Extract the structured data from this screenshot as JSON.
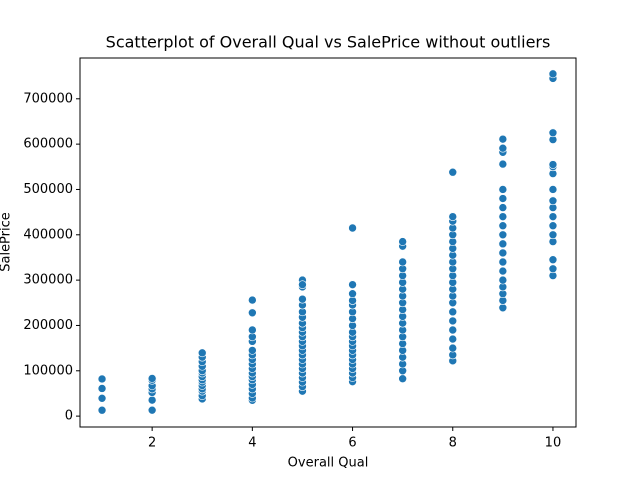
{
  "chart_data": {
    "type": "scatter",
    "title": "Scatterplot of Overall Qual vs SalePrice without outliers",
    "xlabel": "Overall Qual",
    "ylabel": "SalePrice",
    "color": "#1f77b4",
    "xlim": [
      0.56,
      10.46
    ],
    "ylim": [
      -24000,
      790000
    ],
    "xticks": [
      2,
      4,
      6,
      8,
      10
    ],
    "yticks": [
      0,
      100000,
      200000,
      300000,
      400000,
      500000,
      600000,
      700000
    ],
    "x": [
      1,
      1,
      1,
      1,
      2,
      2,
      2,
      2,
      2,
      2,
      2,
      3,
      3,
      3,
      3,
      3,
      3,
      3,
      3,
      3,
      3,
      3,
      3,
      3,
      3,
      4,
      4,
      4,
      4,
      4,
      4,
      4,
      4,
      4,
      4,
      4,
      4,
      4,
      4,
      4,
      4,
      4,
      4,
      5,
      5,
      5,
      5,
      5,
      5,
      5,
      5,
      5,
      5,
      5,
      5,
      5,
      5,
      5,
      5,
      5,
      5,
      5,
      5,
      5,
      5,
      5,
      6,
      6,
      6,
      6,
      6,
      6,
      6,
      6,
      6,
      6,
      6,
      6,
      6,
      6,
      6,
      6,
      6,
      6,
      6,
      6,
      7,
      7,
      7,
      7,
      7,
      7,
      7,
      7,
      7,
      7,
      7,
      7,
      7,
      7,
      7,
      7,
      7,
      7,
      7,
      7,
      8,
      8,
      8,
      8,
      8,
      8,
      8,
      8,
      8,
      8,
      8,
      8,
      8,
      8,
      8,
      8,
      8,
      8,
      8,
      8,
      8,
      8,
      9,
      9,
      9,
      9,
      9,
      9,
      9,
      9,
      9,
      9,
      9,
      9,
      9,
      9,
      9,
      9,
      9,
      9,
      9,
      10,
      10,
      10,
      10,
      10,
      10,
      10,
      10,
      10,
      10,
      10,
      10,
      10,
      10,
      10,
      10,
      10
    ],
    "values": [
      13000,
      39300,
      61000,
      82000,
      13100,
      35300,
      52000,
      60000,
      67000,
      79000,
      83000,
      37900,
      45000,
      55000,
      60000,
      67500,
      75000,
      80000,
      87000,
      95000,
      100000,
      110000,
      120000,
      130000,
      139600,
      34900,
      40000,
      50000,
      60000,
      70000,
      80000,
      87000,
      95000,
      105000,
      115000,
      125000,
      135000,
      145000,
      165000,
      175000,
      190000,
      228000,
      256000,
      55000,
      65000,
      75000,
      85000,
      95000,
      105000,
      115000,
      125000,
      135000,
      145000,
      155000,
      165000,
      175000,
      185000,
      195000,
      205000,
      218000,
      230000,
      245000,
      258000,
      285000,
      300000,
      290000,
      76000,
      85000,
      95000,
      105000,
      115000,
      125000,
      135000,
      145000,
      155000,
      165000,
      175000,
      185000,
      200000,
      215000,
      230000,
      245000,
      255000,
      270000,
      290000,
      415000,
      82500,
      100000,
      115000,
      130000,
      145000,
      160000,
      175000,
      190000,
      205000,
      220000,
      235000,
      250000,
      265000,
      280000,
      295000,
      310000,
      325000,
      340000,
      375000,
      385000,
      122000,
      135000,
      150000,
      170000,
      190000,
      210000,
      230000,
      250000,
      265000,
      280000,
      295000,
      310000,
      325000,
      340000,
      355000,
      370000,
      385000,
      400000,
      415000,
      430000,
      440000,
      538000,
      239000,
      255000,
      270000,
      285000,
      300000,
      320000,
      340000,
      360000,
      380000,
      400000,
      420000,
      440000,
      460000,
      480000,
      500000,
      556000,
      582000,
      591000,
      611000,
      310000,
      325000,
      345000,
      385000,
      400000,
      420000,
      440000,
      460000,
      475000,
      500000,
      535000,
      550000,
      555000,
      610000,
      625000,
      745000,
      755000
    ]
  }
}
